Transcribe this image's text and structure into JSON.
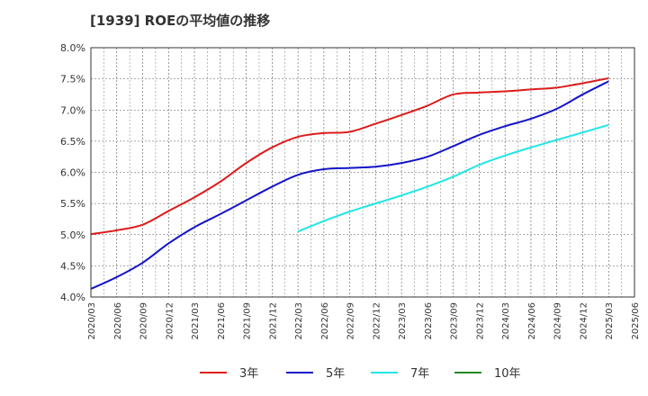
{
  "chart_data": {
    "type": "line",
    "title": "[1939]  ROEの平均値の推移",
    "xlabel": "",
    "ylabel": "",
    "ylim": [
      4.0,
      8.0
    ],
    "y_ticks": [
      "8.0%",
      "7.5%",
      "7.0%",
      "6.5%",
      "6.0%",
      "5.5%",
      "5.0%",
      "4.5%",
      "4.0%"
    ],
    "y_tick_values": [
      8.0,
      7.5,
      7.0,
      6.5,
      6.0,
      5.5,
      5.0,
      4.5,
      4.0
    ],
    "x_ticks": [
      "2020/03",
      "2020/06",
      "2020/09",
      "2020/12",
      "2021/03",
      "2021/06",
      "2021/09",
      "2021/12",
      "2022/03",
      "2022/06",
      "2022/09",
      "2022/12",
      "2023/03",
      "2023/06",
      "2023/09",
      "2023/12",
      "2024/03",
      "2024/06",
      "2024/09",
      "2024/12",
      "2025/03",
      "2025/06"
    ],
    "grid": true,
    "legend_position": "bottom",
    "series": [
      {
        "name": "3年",
        "color": "#dd1c1c",
        "x": [
          "2020/03",
          "2020/06",
          "2020/09",
          "2020/12",
          "2021/03",
          "2021/06",
          "2021/09",
          "2021/12",
          "2022/03",
          "2022/06",
          "2022/09",
          "2022/12",
          "2023/03",
          "2023/06",
          "2023/09",
          "2023/12",
          "2024/03",
          "2024/06",
          "2024/09",
          "2024/12",
          "2025/03"
        ],
        "values": [
          5.01,
          5.07,
          5.16,
          5.38,
          5.6,
          5.85,
          6.15,
          6.4,
          6.57,
          6.63,
          6.65,
          6.78,
          6.92,
          7.07,
          7.25,
          7.28,
          7.3,
          7.33,
          7.36,
          7.43,
          7.51
        ]
      },
      {
        "name": "5年",
        "color": "#1414c8",
        "x": [
          "2020/03",
          "2020/06",
          "2020/09",
          "2020/12",
          "2021/03",
          "2021/06",
          "2021/09",
          "2021/12",
          "2022/03",
          "2022/06",
          "2022/09",
          "2022/12",
          "2023/03",
          "2023/06",
          "2023/09",
          "2023/12",
          "2024/03",
          "2024/06",
          "2024/09",
          "2024/12",
          "2025/03"
        ],
        "values": [
          4.13,
          4.32,
          4.55,
          4.86,
          5.12,
          5.33,
          5.55,
          5.77,
          5.96,
          6.05,
          6.07,
          6.09,
          6.15,
          6.25,
          6.42,
          6.6,
          6.74,
          6.86,
          7.02,
          7.25,
          7.46
        ]
      },
      {
        "name": "7年",
        "color": "#22e5e5",
        "x": [
          "2022/03",
          "2022/06",
          "2022/09",
          "2022/12",
          "2023/03",
          "2023/06",
          "2023/09",
          "2023/12",
          "2024/03",
          "2024/06",
          "2024/09",
          "2024/12",
          "2025/03"
        ],
        "values": [
          5.05,
          5.22,
          5.37,
          5.5,
          5.63,
          5.77,
          5.93,
          6.12,
          6.27,
          6.4,
          6.52,
          6.64,
          6.76
        ]
      },
      {
        "name": "10年",
        "color": "#228b22",
        "x": [],
        "values": []
      }
    ]
  }
}
